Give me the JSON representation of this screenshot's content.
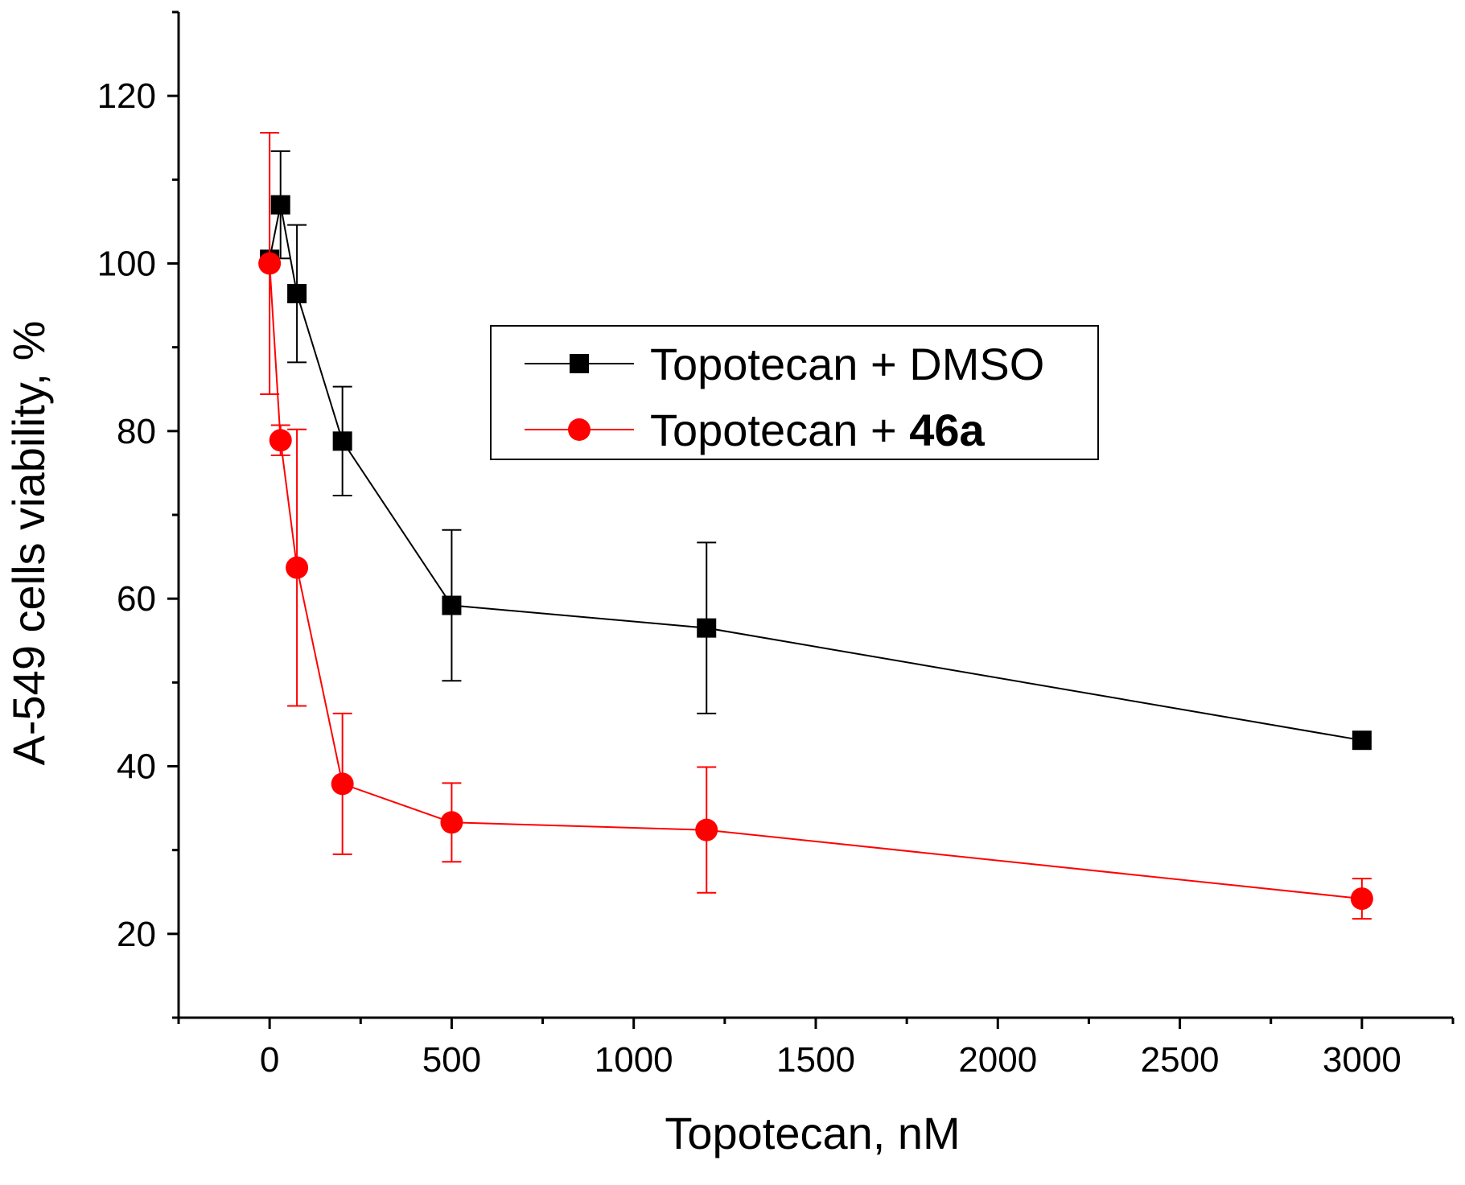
{
  "chart_data": {
    "type": "line",
    "title": "",
    "xlabel": "Topotecan, nM",
    "ylabel": "A-549 cells viability, %",
    "xlim": [
      -250,
      3250
    ],
    "ylim": [
      10,
      130
    ],
    "x_major_ticks": [
      0,
      500,
      1000,
      1500,
      2000,
      2500,
      3000
    ],
    "x_tick_labels": [
      "0",
      "500",
      "1000",
      "1500",
      "2000",
      "2500",
      "3000"
    ],
    "x_minor_ticks": [
      -250,
      250,
      750,
      1250,
      1750,
      2250,
      2750,
      3250
    ],
    "y_major_ticks": [
      20,
      40,
      60,
      80,
      100,
      120
    ],
    "y_tick_labels": [
      "20",
      "40",
      "60",
      "80",
      "100",
      "120"
    ],
    "y_minor_ticks": [
      10,
      30,
      50,
      70,
      90,
      110,
      130
    ],
    "grid": false,
    "legend_position": "center-right",
    "series": [
      {
        "name_prefix": "Topotecan + ",
        "name_suffix": "DMSO",
        "suffix_bold": false,
        "color": "#000000",
        "marker": "square",
        "x": [
          0,
          30,
          75,
          200,
          500,
          1200,
          3000
        ],
        "y": [
          100.5,
          107,
          96.4,
          78.8,
          59.2,
          56.5,
          43.1
        ],
        "err": [
          0,
          6.4,
          8.2,
          6.5,
          9.0,
          10.2,
          0
        ]
      },
      {
        "name_prefix": "Topotecan + ",
        "name_suffix": "46a",
        "suffix_bold": true,
        "color": "#ff0000",
        "marker": "circle",
        "x": [
          0,
          30,
          75,
          200,
          500,
          1200,
          3000
        ],
        "y": [
          100,
          78.9,
          63.7,
          37.9,
          33.3,
          32.4,
          24.2
        ],
        "err": [
          15.6,
          1.8,
          16.5,
          8.4,
          4.7,
          7.5,
          2.4
        ]
      }
    ]
  }
}
